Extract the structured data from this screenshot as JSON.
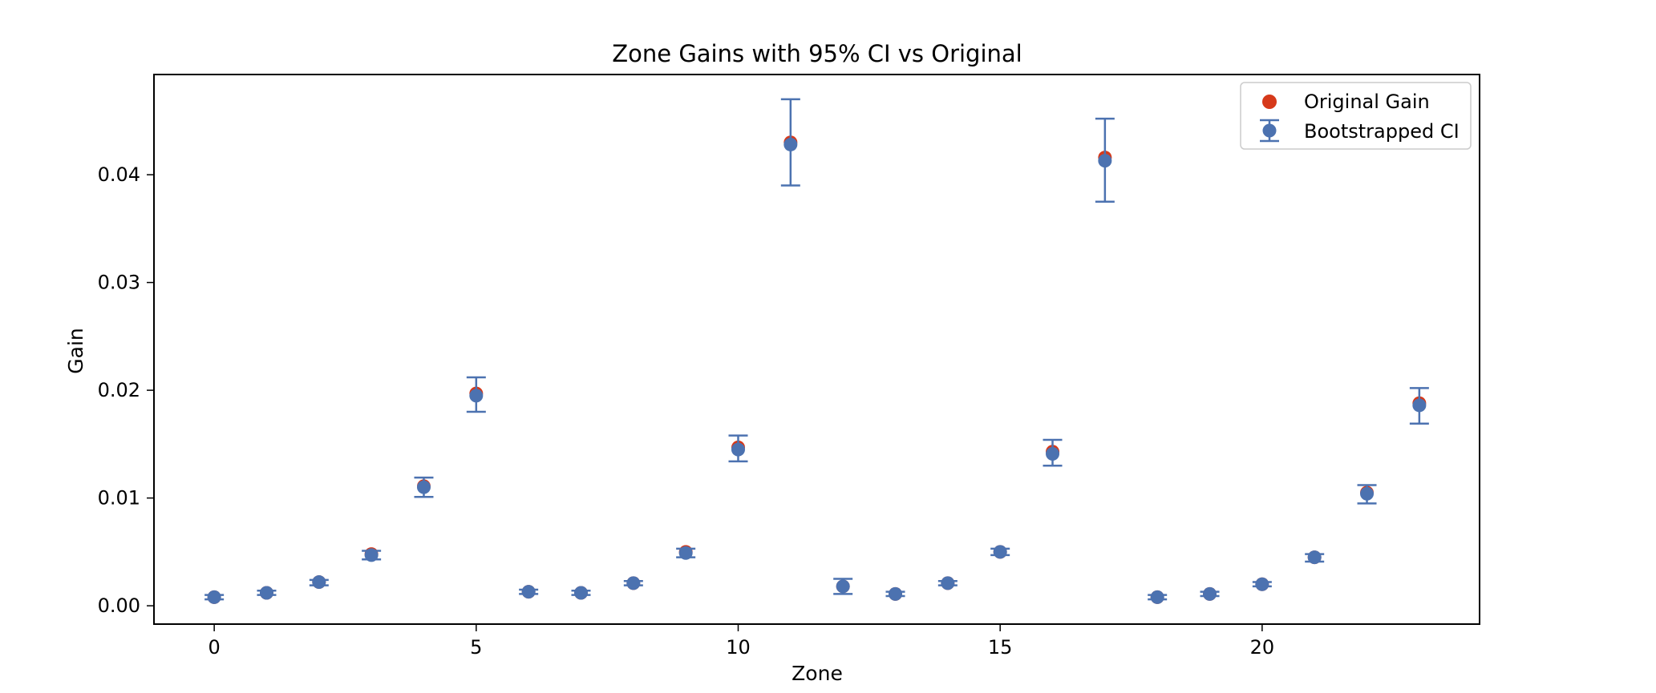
{
  "chart_data": {
    "type": "scatter",
    "title": "Zone Gains with 95% CI vs Original",
    "xlabel": "Zone",
    "ylabel": "Gain",
    "xlim": [
      -1.15,
      24.15
    ],
    "ylim": [
      -0.0017,
      0.0493
    ],
    "xticks": [
      0,
      5,
      10,
      15,
      20
    ],
    "xtick_labels": [
      "0",
      "5",
      "10",
      "15",
      "20"
    ],
    "yticks": [
      0.0,
      0.01,
      0.02,
      0.03,
      0.04
    ],
    "ytick_labels": [
      "0.00",
      "0.01",
      "0.02",
      "0.03",
      "0.04"
    ],
    "grid": false,
    "legend_position": "top-right",
    "colors": {
      "original": "#d6391a",
      "bootstrap": "#4c72b0"
    },
    "series": [
      {
        "name": "Original Gain",
        "kind": "scatter",
        "x": [
          0,
          1,
          2,
          3,
          4,
          5,
          6,
          7,
          8,
          9,
          10,
          11,
          12,
          13,
          14,
          15,
          16,
          17,
          18,
          19,
          20,
          21,
          22,
          23
        ],
        "values": [
          0.0008,
          0.0012,
          0.0022,
          0.0048,
          0.0111,
          0.0197,
          0.0013,
          0.0012,
          0.0021,
          0.005,
          0.0147,
          0.043,
          0.0018,
          0.0011,
          0.0021,
          0.005,
          0.0143,
          0.0416,
          0.0008,
          0.0011,
          0.002,
          0.0045,
          0.0105,
          0.0188
        ]
      },
      {
        "name": "Bootstrapped CI",
        "kind": "errorbar",
        "x": [
          0,
          1,
          2,
          3,
          4,
          5,
          6,
          7,
          8,
          9,
          10,
          11,
          12,
          13,
          14,
          15,
          16,
          17,
          18,
          19,
          20,
          21,
          22,
          23
        ],
        "values": [
          0.0008,
          0.0012,
          0.0022,
          0.0047,
          0.011,
          0.0195,
          0.0013,
          0.0012,
          0.0021,
          0.0049,
          0.0145,
          0.0428,
          0.0018,
          0.0011,
          0.0021,
          0.005,
          0.0141,
          0.0413,
          0.0008,
          0.0011,
          0.002,
          0.0045,
          0.0104,
          0.0186
        ],
        "lower": [
          0.0006,
          0.001,
          0.0019,
          0.0043,
          0.0101,
          0.018,
          0.0011,
          0.001,
          0.0019,
          0.0045,
          0.0134,
          0.039,
          0.0011,
          0.0009,
          0.0019,
          0.0047,
          0.013,
          0.0375,
          0.0006,
          0.0009,
          0.0018,
          0.0041,
          0.0095,
          0.0169
        ],
        "upper": [
          0.001,
          0.0014,
          0.0024,
          0.0051,
          0.0119,
          0.0212,
          0.0015,
          0.0014,
          0.0023,
          0.0053,
          0.0158,
          0.047,
          0.0025,
          0.0013,
          0.0023,
          0.0053,
          0.0154,
          0.0452,
          0.001,
          0.0013,
          0.0022,
          0.0048,
          0.0112,
          0.0202
        ]
      }
    ]
  }
}
